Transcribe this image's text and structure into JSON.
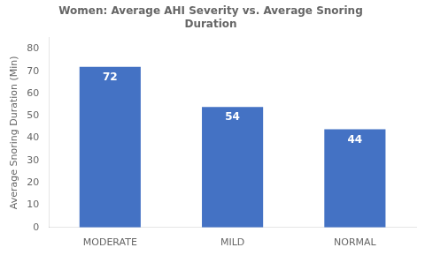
{
  "chart_data": {
    "type": "bar",
    "title": "Women: Average AHI Severity vs. Average Snoring\nDuration",
    "categories": [
      "MODERATE",
      "MILD",
      "NORMAL"
    ],
    "values": [
      72,
      54,
      44
    ],
    "color": "#4472C4",
    "ylabel": "Average Snoring Duration (Min)",
    "ylim": [
      0,
      85
    ],
    "yticks": [
      0,
      10,
      20,
      30,
      40,
      50,
      60,
      70,
      80
    ],
    "grid": false,
    "data_labels": true
  }
}
